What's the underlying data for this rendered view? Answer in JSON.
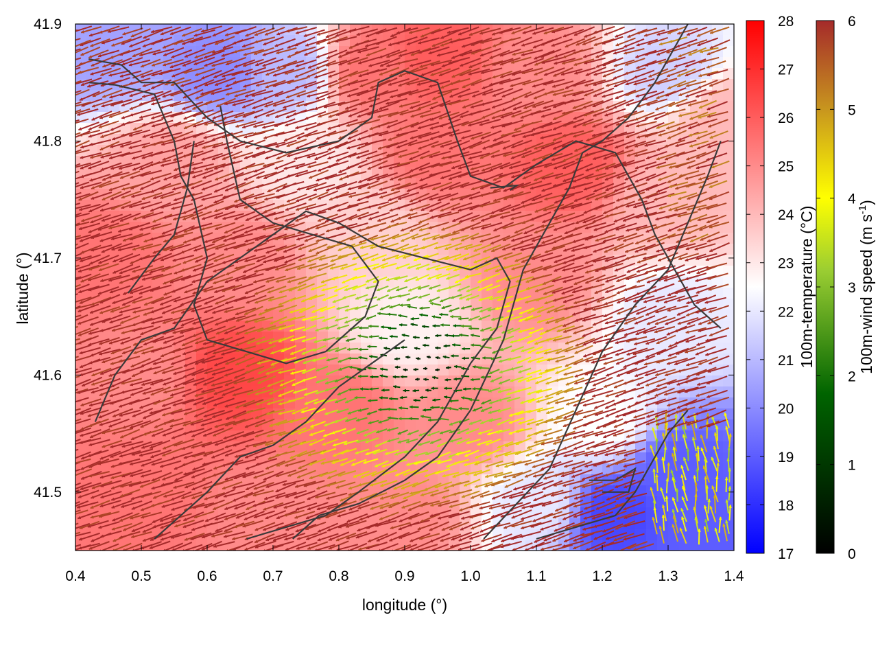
{
  "chart_data": {
    "type": "heatmap",
    "overlay": "wind vectors + terrain contours",
    "xlabel": "longitude (°)",
    "ylabel": "latitude (°)",
    "xlim": [
      0.4,
      1.4
    ],
    "ylim": [
      41.45,
      41.9
    ],
    "x_ticks": [
      "0.4",
      "0.5",
      "0.6",
      "0.7",
      "0.8",
      "0.9",
      "1.0",
      "1.1",
      "1.2",
      "1.3",
      "1.4"
    ],
    "y_ticks": [
      "41.5",
      "41.6",
      "41.7",
      "41.8",
      "41.9"
    ],
    "x_tick_values": [
      0.4,
      0.5,
      0.6,
      0.7,
      0.8,
      0.9,
      1.0,
      1.1,
      1.2,
      1.3,
      1.4
    ],
    "y_tick_values": [
      41.5,
      41.6,
      41.7,
      41.8,
      41.9
    ],
    "grid": false,
    "temperature_colorbar": {
      "label": "100m-temperature (°C)",
      "range": [
        17,
        28
      ],
      "ticks": [
        "17",
        "18",
        "19",
        "20",
        "21",
        "22",
        "23",
        "24",
        "25",
        "26",
        "27",
        "28"
      ],
      "tick_values": [
        17,
        18,
        19,
        20,
        21,
        22,
        23,
        24,
        25,
        26,
        27,
        28
      ],
      "colors": [
        "#0000ff",
        "#ffffff",
        "#ff0000"
      ],
      "midpoint": 22.5
    },
    "wind_colorbar": {
      "label_main": "100m-wind speed (m s",
      "label_sup": "-1",
      "label_end": ")",
      "range": [
        0,
        6
      ],
      "ticks": [
        "0",
        "1",
        "2",
        "3",
        "4",
        "5",
        "6"
      ],
      "tick_values": [
        0,
        1,
        2,
        3,
        4,
        5,
        6
      ],
      "colors": [
        "#000000",
        "#006400",
        "#9acd32",
        "#ffff00",
        "#c8961e",
        "#a52a2a"
      ],
      "stops": [
        0,
        1.8,
        3.2,
        4,
        5,
        6
      ]
    },
    "temperature_field": [
      {
        "lon": 0.45,
        "lat": 41.88,
        "t": 20.5
      },
      {
        "lon": 0.62,
        "lat": 41.86,
        "t": 20.0
      },
      {
        "lon": 0.72,
        "lat": 41.86,
        "t": 21.0
      },
      {
        "lon": 0.85,
        "lat": 41.86,
        "t": 25.5
      },
      {
        "lon": 0.95,
        "lat": 41.87,
        "t": 26.0
      },
      {
        "lon": 1.1,
        "lat": 41.86,
        "t": 25.0
      },
      {
        "lon": 1.3,
        "lat": 41.86,
        "t": 21.5
      },
      {
        "lon": 1.38,
        "lat": 41.82,
        "t": 24.0
      },
      {
        "lon": 0.55,
        "lat": 41.78,
        "t": 24.5
      },
      {
        "lon": 0.75,
        "lat": 41.78,
        "t": 23.0
      },
      {
        "lon": 0.95,
        "lat": 41.79,
        "t": 25.5
      },
      {
        "lon": 1.15,
        "lat": 41.78,
        "t": 26.0
      },
      {
        "lon": 1.3,
        "lat": 41.75,
        "t": 24.0
      },
      {
        "lon": 0.45,
        "lat": 41.7,
        "t": 25.5
      },
      {
        "lon": 0.65,
        "lat": 41.7,
        "t": 25.0
      },
      {
        "lon": 0.85,
        "lat": 41.72,
        "t": 23.5
      },
      {
        "lon": 0.9,
        "lat": 41.64,
        "t": 22.8
      },
      {
        "lon": 1.1,
        "lat": 41.68,
        "t": 25.0
      },
      {
        "lon": 1.3,
        "lat": 41.65,
        "t": 22.0
      },
      {
        "lon": 0.5,
        "lat": 41.6,
        "t": 25.0
      },
      {
        "lon": 0.65,
        "lat": 41.6,
        "t": 26.5
      },
      {
        "lon": 0.8,
        "lat": 41.57,
        "t": 25.5
      },
      {
        "lon": 1.0,
        "lat": 41.56,
        "t": 25.0
      },
      {
        "lon": 1.2,
        "lat": 41.56,
        "t": 22.5
      },
      {
        "lon": 1.32,
        "lat": 41.52,
        "t": 19.0
      },
      {
        "lon": 0.5,
        "lat": 41.5,
        "t": 25.5
      },
      {
        "lon": 0.7,
        "lat": 41.48,
        "t": 25.0
      },
      {
        "lon": 0.9,
        "lat": 41.48,
        "t": 25.0
      },
      {
        "lon": 1.1,
        "lat": 41.49,
        "t": 22.0
      },
      {
        "lon": 1.22,
        "lat": 41.48,
        "t": 18.5
      },
      {
        "lon": 1.35,
        "lat": 41.47,
        "t": 19.0
      }
    ],
    "wind_field": {
      "calm_center": [
        0.93,
        41.61
      ],
      "calm_radius_deg": 0.2,
      "prevailing_direction": "from east-southeast (vectors point west-northwest)",
      "max_speed": 6
    },
    "contours": [
      [
        [
          0.42,
          41.87
        ],
        [
          0.47,
          41.865
        ],
        [
          0.5,
          41.85
        ],
        [
          0.55,
          41.85
        ],
        [
          0.6,
          41.82
        ],
        [
          0.65,
          41.8
        ],
        [
          0.72,
          41.79
        ],
        [
          0.8,
          41.8
        ],
        [
          0.85,
          41.82
        ],
        [
          0.86,
          41.85
        ],
        [
          0.9,
          41.86
        ],
        [
          0.95,
          41.85
        ],
        [
          0.98,
          41.8
        ],
        [
          1.0,
          41.77
        ],
        [
          1.05,
          41.76
        ],
        [
          1.1,
          41.78
        ],
        [
          1.16,
          41.8
        ],
        [
          1.22,
          41.79
        ],
        [
          1.26,
          41.75
        ],
        [
          1.28,
          41.72
        ],
        [
          1.3,
          41.7
        ],
        [
          1.34,
          41.66
        ],
        [
          1.38,
          41.64
        ]
      ],
      [
        [
          0.42,
          41.85
        ],
        [
          0.46,
          41.848
        ],
        [
          0.52,
          41.84
        ],
        [
          0.55,
          41.8
        ],
        [
          0.56,
          41.77
        ],
        [
          0.58,
          41.75
        ],
        [
          0.6,
          41.7
        ],
        [
          0.58,
          41.66
        ],
        [
          0.6,
          41.63
        ],
        [
          0.66,
          41.62
        ],
        [
          0.72,
          41.61
        ],
        [
          0.78,
          41.62
        ],
        [
          0.84,
          41.65
        ],
        [
          0.86,
          41.68
        ],
        [
          0.82,
          41.71
        ],
        [
          0.76,
          41.72
        ],
        [
          0.7,
          41.73
        ],
        [
          0.65,
          41.75
        ],
        [
          0.63,
          41.8
        ],
        [
          0.62,
          41.83
        ]
      ],
      [
        [
          0.48,
          41.67
        ],
        [
          0.52,
          41.7
        ],
        [
          0.55,
          41.72
        ],
        [
          0.57,
          41.76
        ],
        [
          0.58,
          41.8
        ]
      ],
      [
        [
          0.43,
          41.56
        ],
        [
          0.46,
          41.6
        ],
        [
          0.5,
          41.63
        ],
        [
          0.55,
          41.64
        ],
        [
          0.6,
          41.68
        ],
        [
          0.65,
          41.7
        ],
        [
          0.7,
          41.72
        ],
        [
          0.75,
          41.74
        ],
        [
          0.8,
          41.73
        ],
        [
          0.86,
          41.71
        ],
        [
          0.93,
          41.7
        ],
        [
          1.0,
          41.69
        ],
        [
          1.04,
          41.7
        ],
        [
          1.06,
          41.68
        ],
        [
          1.04,
          41.64
        ],
        [
          1.0,
          41.61
        ],
        [
          0.95,
          41.56
        ],
        [
          0.9,
          41.53
        ],
        [
          0.83,
          41.5
        ],
        [
          0.78,
          41.48
        ],
        [
          0.72,
          41.47
        ],
        [
          0.66,
          41.46
        ]
      ],
      [
        [
          0.52,
          41.46
        ],
        [
          0.56,
          41.48
        ],
        [
          0.6,
          41.5
        ],
        [
          0.65,
          41.53
        ],
        [
          0.7,
          41.54
        ],
        [
          0.75,
          41.56
        ],
        [
          0.8,
          41.59
        ],
        [
          0.85,
          41.61
        ],
        [
          0.9,
          41.63
        ]
      ],
      [
        [
          0.73,
          41.46
        ],
        [
          0.77,
          41.48
        ],
        [
          0.83,
          41.49
        ],
        [
          0.9,
          41.51
        ],
        [
          0.95,
          41.53
        ],
        [
          1.0,
          41.57
        ],
        [
          1.05,
          41.63
        ],
        [
          1.08,
          41.69
        ],
        [
          1.12,
          41.73
        ],
        [
          1.15,
          41.76
        ],
        [
          1.17,
          41.79
        ],
        [
          1.2,
          41.8
        ],
        [
          1.24,
          41.82
        ],
        [
          1.28,
          41.85
        ],
        [
          1.3,
          41.87
        ],
        [
          1.33,
          41.9
        ]
      ],
      [
        [
          1.02,
          41.46
        ],
        [
          1.07,
          41.49
        ],
        [
          1.12,
          41.52
        ],
        [
          1.16,
          41.57
        ],
        [
          1.2,
          41.62
        ],
        [
          1.25,
          41.66
        ],
        [
          1.3,
          41.69
        ],
        [
          1.33,
          41.73
        ],
        [
          1.36,
          41.77
        ],
        [
          1.38,
          41.8
        ]
      ],
      [
        [
          1.1,
          41.46
        ],
        [
          1.16,
          41.47
        ],
        [
          1.22,
          41.48
        ],
        [
          1.25,
          41.5
        ],
        [
          1.27,
          41.52
        ],
        [
          1.3,
          41.55
        ],
        [
          1.33,
          41.57
        ]
      ],
      [
        [
          1.18,
          41.51
        ],
        [
          1.22,
          41.51
        ],
        [
          1.25,
          41.52
        ],
        [
          1.24,
          41.5
        ],
        [
          1.2,
          41.5
        ]
      ],
      [
        [
          1.03,
          41.76
        ],
        [
          1.07,
          41.762
        ],
        [
          1.06,
          41.758
        ]
      ]
    ]
  }
}
